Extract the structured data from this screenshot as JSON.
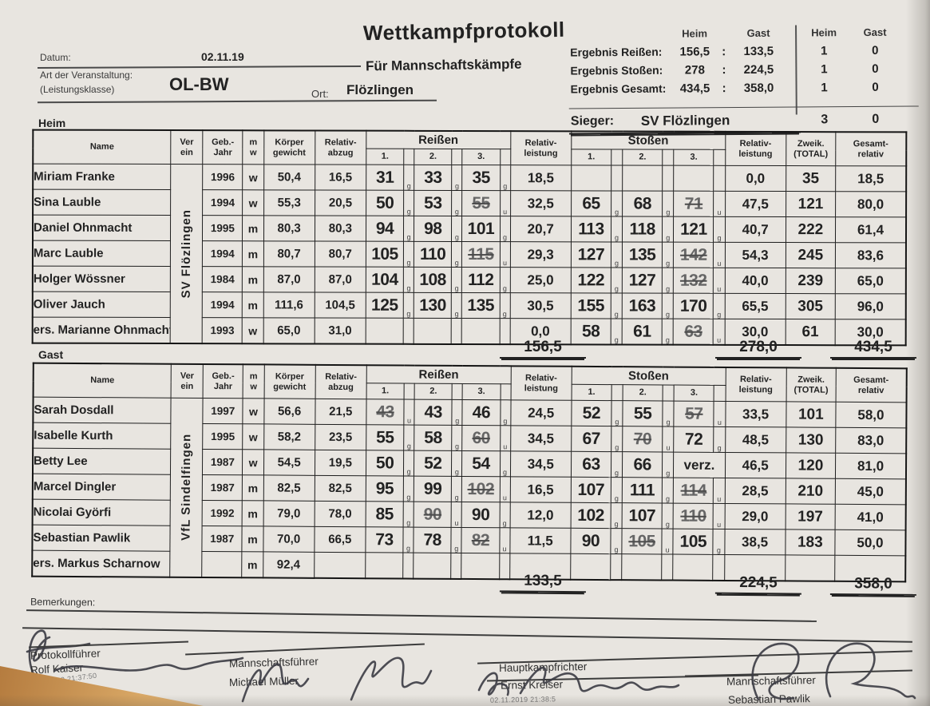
{
  "doc": {
    "title": "Wettkampfprotokoll",
    "subtitle": "Für Mannschaftskämpfe",
    "datum_label": "Datum:",
    "datum": "02.11.19",
    "art_label": "Art der Veranstaltung:",
    "klasse_label": "(Leistungsklasse)",
    "klasse": "OL-BW",
    "ort_label": "Ort:",
    "ort": "Flözlingen"
  },
  "results": {
    "col_heim": "Heim",
    "col_gast": "Gast",
    "rows": [
      {
        "label": "Ergebnis Reißen:",
        "heim": "156,5",
        "sep": ":",
        "gast": "133,5",
        "pts_heim": "1",
        "pts_gast": "0"
      },
      {
        "label": "Ergebnis Stoßen:",
        "heim": "278",
        "sep": ":",
        "gast": "224,5",
        "pts_heim": "1",
        "pts_gast": "0"
      },
      {
        "label": "Ergebnis Gesamt:",
        "heim": "434,5",
        "sep": ":",
        "gast": "358,0",
        "pts_heim": "1",
        "pts_gast": "0"
      }
    ],
    "sieger_label": "Sieger:",
    "sieger": "SV Flözlingen",
    "sieger_pts_heim": "3",
    "sieger_pts_gast": "0"
  },
  "cols": {
    "name": "Name",
    "verein": [
      "Ver",
      "ein"
    ],
    "geb": [
      "Geb.-",
      "Jahr"
    ],
    "mw": [
      "m",
      "w"
    ],
    "koerper": [
      "Körper",
      "gewicht"
    ],
    "abzug": [
      "Relativ-",
      "abzug"
    ],
    "reissen": "Reißen",
    "stossen": "Stoßen",
    "attempts": [
      "1.",
      "2.",
      "3."
    ],
    "rel": [
      "Relativ-",
      "leistung"
    ],
    "zweik": [
      "Zweik.",
      "(TOTAL)"
    ],
    "gesamt": [
      "Gesamt-",
      "relativ"
    ]
  },
  "heim": {
    "label": "Heim",
    "club": "SV Flözlingen",
    "rows": [
      {
        "name": "Miriam Franke",
        "year": "1996",
        "sex": "w",
        "weight": "50,4",
        "abzug": "16,5",
        "reissen": [
          {
            "v": "31",
            "m": "g"
          },
          {
            "v": "33",
            "m": "g"
          },
          {
            "v": "35",
            "m": "g"
          }
        ],
        "rel_reissen": "18,5",
        "stossen": [
          {
            "v": "",
            "m": ""
          },
          {
            "v": "",
            "m": ""
          },
          {
            "v": "",
            "m": ""
          }
        ],
        "rel_stossen": "0,0",
        "zweik": "35",
        "gesamt": "18,5"
      },
      {
        "name": "Sina Lauble",
        "year": "1994",
        "sex": "w",
        "weight": "55,3",
        "abzug": "20,5",
        "reissen": [
          {
            "v": "50",
            "m": "g"
          },
          {
            "v": "53",
            "m": "g"
          },
          {
            "v": "55",
            "m": "u",
            "s": true
          }
        ],
        "rel_reissen": "32,5",
        "stossen": [
          {
            "v": "65",
            "m": "g"
          },
          {
            "v": "68",
            "m": "g"
          },
          {
            "v": "71",
            "m": "u",
            "s": true
          }
        ],
        "rel_stossen": "47,5",
        "zweik": "121",
        "gesamt": "80,0"
      },
      {
        "name": "Daniel Ohnmacht",
        "year": "1995",
        "sex": "m",
        "weight": "80,3",
        "abzug": "80,3",
        "reissen": [
          {
            "v": "94",
            "m": "g"
          },
          {
            "v": "98",
            "m": "g"
          },
          {
            "v": "101",
            "m": "g"
          }
        ],
        "rel_reissen": "20,7",
        "stossen": [
          {
            "v": "113",
            "m": "g"
          },
          {
            "v": "118",
            "m": "g"
          },
          {
            "v": "121",
            "m": "g"
          }
        ],
        "rel_stossen": "40,7",
        "zweik": "222",
        "gesamt": "61,4"
      },
      {
        "name": "Marc Lauble",
        "year": "1994",
        "sex": "m",
        "weight": "80,7",
        "abzug": "80,7",
        "reissen": [
          {
            "v": "105",
            "m": "g"
          },
          {
            "v": "110",
            "m": "g"
          },
          {
            "v": "115",
            "m": "u",
            "s": true
          }
        ],
        "rel_reissen": "29,3",
        "stossen": [
          {
            "v": "127",
            "m": "g"
          },
          {
            "v": "135",
            "m": "g"
          },
          {
            "v": "142",
            "m": "u",
            "s": true
          }
        ],
        "rel_stossen": "54,3",
        "zweik": "245",
        "gesamt": "83,6"
      },
      {
        "name": "Holger Wössner",
        "year": "1984",
        "sex": "m",
        "weight": "87,0",
        "abzug": "87,0",
        "reissen": [
          {
            "v": "104",
            "m": "g"
          },
          {
            "v": "108",
            "m": "g"
          },
          {
            "v": "112",
            "m": "g"
          }
        ],
        "rel_reissen": "25,0",
        "stossen": [
          {
            "v": "122",
            "m": "g"
          },
          {
            "v": "127",
            "m": "g"
          },
          {
            "v": "132",
            "m": "u",
            "s": true
          }
        ],
        "rel_stossen": "40,0",
        "zweik": "239",
        "gesamt": "65,0"
      },
      {
        "name": "Oliver Jauch",
        "year": "1994",
        "sex": "m",
        "weight": "111,6",
        "abzug": "104,5",
        "reissen": [
          {
            "v": "125",
            "m": "g"
          },
          {
            "v": "130",
            "m": "g"
          },
          {
            "v": "135",
            "m": "g"
          }
        ],
        "rel_reissen": "30,5",
        "stossen": [
          {
            "v": "155",
            "m": "g"
          },
          {
            "v": "163",
            "m": "g"
          },
          {
            "v": "170",
            "m": "g"
          }
        ],
        "rel_stossen": "65,5",
        "zweik": "305",
        "gesamt": "96,0"
      },
      {
        "name": "ers. Marianne Ohnmacht",
        "year": "1993",
        "sex": "w",
        "weight": "65,0",
        "abzug": "31,0",
        "reissen": [
          {
            "v": "",
            "m": ""
          },
          {
            "v": "",
            "m": ""
          },
          {
            "v": "",
            "m": ""
          }
        ],
        "rel_reissen": "0,0",
        "stossen": [
          {
            "v": "58",
            "m": "g"
          },
          {
            "v": "61",
            "m": "g"
          },
          {
            "v": "63",
            "m": "u",
            "s": true
          }
        ],
        "rel_stossen": "30,0",
        "zweik": "61",
        "gesamt": "30,0"
      }
    ],
    "totals": {
      "reissen": "156,5",
      "stossen": "278,0",
      "gesamt": "434,5"
    }
  },
  "gast": {
    "label": "Gast",
    "club": "VfL Sindelfingen",
    "rows": [
      {
        "name": "Sarah Dosdall",
        "year": "1997",
        "sex": "w",
        "weight": "56,6",
        "abzug": "21,5",
        "reissen": [
          {
            "v": "43",
            "m": "u",
            "s": true
          },
          {
            "v": "43",
            "m": "g"
          },
          {
            "v": "46",
            "m": "g"
          }
        ],
        "rel_reissen": "24,5",
        "stossen": [
          {
            "v": "52",
            "m": "g"
          },
          {
            "v": "55",
            "m": "g"
          },
          {
            "v": "57",
            "m": "u",
            "s": true
          }
        ],
        "rel_stossen": "33,5",
        "zweik": "101",
        "gesamt": "58,0"
      },
      {
        "name": "Isabelle Kurth",
        "year": "1995",
        "sex": "w",
        "weight": "58,2",
        "abzug": "23,5",
        "reissen": [
          {
            "v": "55",
            "m": "g"
          },
          {
            "v": "58",
            "m": "g"
          },
          {
            "v": "60",
            "m": "u",
            "s": true
          }
        ],
        "rel_reissen": "34,5",
        "stossen": [
          {
            "v": "67",
            "m": "g"
          },
          {
            "v": "70",
            "m": "u",
            "s": true
          },
          {
            "v": "72",
            "m": "g"
          }
        ],
        "rel_stossen": "48,5",
        "zweik": "130",
        "gesamt": "83,0"
      },
      {
        "name": "Betty Lee",
        "year": "1987",
        "sex": "w",
        "weight": "54,5",
        "abzug": "19,5",
        "reissen": [
          {
            "v": "50",
            "m": "g"
          },
          {
            "v": "52",
            "m": "g"
          },
          {
            "v": "54",
            "m": "g"
          }
        ],
        "rel_reissen": "34,5",
        "stossen": [
          {
            "v": "63",
            "m": "g"
          },
          {
            "v": "66",
            "m": "g"
          },
          {
            "v": "verz.",
            "m": "",
            "wide": true
          }
        ],
        "rel_stossen": "46,5",
        "zweik": "120",
        "gesamt": "81,0"
      },
      {
        "name": "Marcel Dingler",
        "year": "1987",
        "sex": "m",
        "weight": "82,5",
        "abzug": "82,5",
        "reissen": [
          {
            "v": "95",
            "m": "g"
          },
          {
            "v": "99",
            "m": "g"
          },
          {
            "v": "102",
            "m": "u",
            "s": true
          }
        ],
        "rel_reissen": "16,5",
        "stossen": [
          {
            "v": "107",
            "m": "g"
          },
          {
            "v": "111",
            "m": "g"
          },
          {
            "v": "114",
            "m": "u",
            "s": true
          }
        ],
        "rel_stossen": "28,5",
        "zweik": "210",
        "gesamt": "45,0"
      },
      {
        "name": "Nicolai Györfi",
        "year": "1992",
        "sex": "m",
        "weight": "79,0",
        "abzug": "78,0",
        "reissen": [
          {
            "v": "85",
            "m": "g"
          },
          {
            "v": "90",
            "m": "u",
            "s": true
          },
          {
            "v": "90",
            "m": "g"
          }
        ],
        "rel_reissen": "12,0",
        "stossen": [
          {
            "v": "102",
            "m": "g"
          },
          {
            "v": "107",
            "m": "g"
          },
          {
            "v": "110",
            "m": "u",
            "s": true
          }
        ],
        "rel_stossen": "29,0",
        "zweik": "197",
        "gesamt": "41,0"
      },
      {
        "name": "Sebastian Pawlik",
        "year": "1987",
        "sex": "m",
        "weight": "70,0",
        "abzug": "66,5",
        "reissen": [
          {
            "v": "73",
            "m": "g"
          },
          {
            "v": "78",
            "m": "g"
          },
          {
            "v": "82",
            "m": "u",
            "s": true
          }
        ],
        "rel_reissen": "11,5",
        "stossen": [
          {
            "v": "90",
            "m": "g"
          },
          {
            "v": "105",
            "m": "u",
            "s": true
          },
          {
            "v": "105",
            "m": "g"
          }
        ],
        "rel_stossen": "38,5",
        "zweik": "183",
        "gesamt": "50,0"
      },
      {
        "name": "ers. Markus Scharnow",
        "year": "",
        "sex": "m",
        "weight": "92,4",
        "abzug": "",
        "reissen": [
          {
            "v": "",
            "m": ""
          },
          {
            "v": "",
            "m": ""
          },
          {
            "v": "",
            "m": ""
          }
        ],
        "rel_reissen": "",
        "stossen": [
          {
            "v": "",
            "m": ""
          },
          {
            "v": "",
            "m": ""
          },
          {
            "v": "",
            "m": ""
          }
        ],
        "rel_stossen": "",
        "zweik": "",
        "gesamt": ""
      }
    ],
    "totals": {
      "reissen": "133,5",
      "stossen": "224,5",
      "gesamt": "358,0"
    }
  },
  "footer": {
    "bemerkungen_label": "Bemerkungen:",
    "signatures": [
      {
        "role": "Protokollführer",
        "name": "Rolf Kaiser",
        "timestamp": "02.11.2019 21:37:50"
      },
      {
        "role": "Mannschaftsführer",
        "name": "Michael Müller",
        "timestamp": ""
      },
      {
        "role": "Hauptkampfrichter",
        "name": "Ernst Kreiser",
        "timestamp": "02.11.2019 21:38:5"
      },
      {
        "role": "Mannschaftsführer",
        "name": "Sebastian Pawlik",
        "timestamp": ""
      }
    ]
  }
}
